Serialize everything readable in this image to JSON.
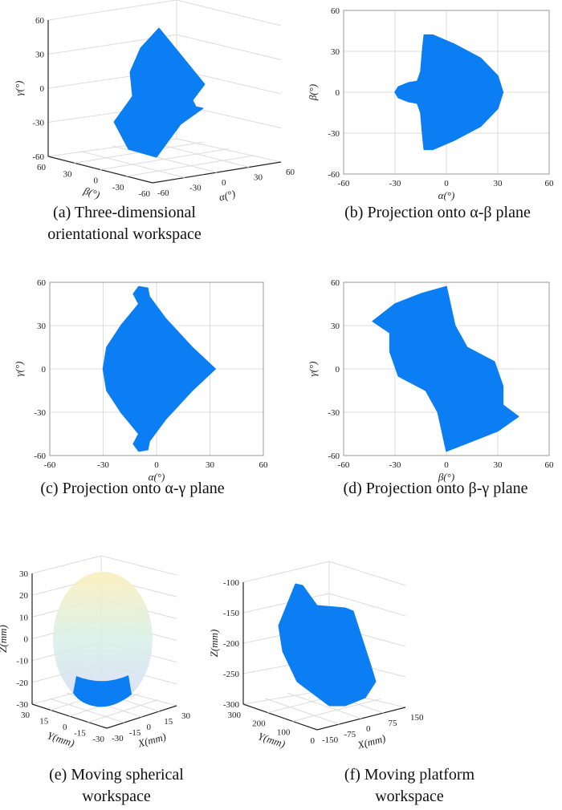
{
  "colors": {
    "points": "#0a7ef2",
    "grid": "#dcdcdc",
    "axis": "#222222"
  },
  "captions": {
    "a": [
      "(a) Three-dimensional",
      "orientational workspace"
    ],
    "b": "(b) Projection onto α-β plane",
    "c": "(c) Projection onto α-γ plane",
    "d": "(d) Projection onto β-γ plane",
    "e": [
      "(e) Moving spherical",
      "workspace"
    ],
    "f": [
      "(f) Moving platform",
      "workspace"
    ]
  },
  "chart_data": [
    {
      "id": "a",
      "type": "scatter3d",
      "title": "Three-dimensional orientational workspace",
      "xlabel": "α(°)",
      "ylabel": "β(°)",
      "zlabel": "γ(°)",
      "xticks": [
        "-60",
        "-30",
        "0",
        "30",
        "60"
      ],
      "yticks": [
        "60",
        "30",
        "0",
        "-30",
        "-60"
      ],
      "zticks": [
        "60",
        "30",
        "0",
        "-30",
        "-60"
      ],
      "xlim": [
        -60,
        60
      ],
      "ylim": [
        -60,
        60
      ],
      "zlim": [
        -60,
        60
      ]
    },
    {
      "id": "b",
      "type": "scatter",
      "title": "Projection onto α-β plane",
      "xlabel": "α(°)",
      "ylabel": "β(°)",
      "xticks": [
        "-60",
        "-30",
        "0",
        "30",
        "60"
      ],
      "yticks": [
        "60",
        "30",
        "0",
        "-30",
        "-60"
      ],
      "xlim": [
        -60,
        60
      ],
      "ylim": [
        -60,
        60
      ],
      "region": [
        [
          -30,
          0
        ],
        [
          -28,
          4
        ],
        [
          -22,
          7
        ],
        [
          -17,
          8
        ],
        [
          -15,
          15
        ],
        [
          -14,
          30
        ],
        [
          -13,
          42
        ],
        [
          -8,
          42
        ],
        [
          5,
          35
        ],
        [
          20,
          25
        ],
        [
          30,
          12
        ],
        [
          33,
          0
        ],
        [
          30,
          -12
        ],
        [
          20,
          -25
        ],
        [
          5,
          -35
        ],
        [
          -8,
          -42
        ],
        [
          -13,
          -42
        ],
        [
          -14,
          -30
        ],
        [
          -15,
          -15
        ],
        [
          -17,
          -8
        ],
        [
          -22,
          -7
        ],
        [
          -28,
          -4
        ]
      ]
    },
    {
      "id": "c",
      "type": "scatter",
      "title": "Projection onto α-γ plane",
      "xlabel": "α(°)",
      "ylabel": "γ(°)",
      "xticks": [
        "-60",
        "-30",
        "0",
        "30",
        "60"
      ],
      "yticks": [
        "60",
        "30",
        "0",
        "-30",
        "-60"
      ],
      "xlim": [
        -60,
        60
      ],
      "ylim": [
        -60,
        60
      ],
      "region": [
        [
          -10,
          57
        ],
        [
          -5,
          56
        ],
        [
          -4,
          50
        ],
        [
          5,
          35
        ],
        [
          20,
          15
        ],
        [
          33,
          0
        ],
        [
          20,
          -15
        ],
        [
          5,
          -35
        ],
        [
          -4,
          -50
        ],
        [
          -5,
          -56
        ],
        [
          -10,
          -57
        ],
        [
          -13,
          -52
        ],
        [
          -10,
          -45
        ],
        [
          -20,
          -30
        ],
        [
          -28,
          -15
        ],
        [
          -30,
          0
        ],
        [
          -28,
          15
        ],
        [
          -20,
          30
        ],
        [
          -10,
          45
        ],
        [
          -13,
          52
        ]
      ]
    },
    {
      "id": "d",
      "type": "scatter",
      "title": "Projection onto β-γ plane",
      "xlabel": "β(°)",
      "ylabel": "γ(°)",
      "xticks": [
        "-60",
        "-30",
        "0",
        "30",
        "60"
      ],
      "yticks": [
        "60",
        "30",
        "0",
        "-30",
        "-60"
      ],
      "xlim": [
        -60,
        60
      ],
      "ylim": [
        -60,
        60
      ],
      "region": [
        [
          -43,
          33
        ],
        [
          -30,
          45
        ],
        [
          -15,
          52
        ],
        [
          0,
          57
        ],
        [
          5,
          30
        ],
        [
          12,
          15
        ],
        [
          28,
          5
        ],
        [
          33,
          -12
        ],
        [
          33,
          -25
        ],
        [
          42,
          -33
        ],
        [
          30,
          -43
        ],
        [
          15,
          -50
        ],
        [
          0,
          -57
        ],
        [
          -5,
          -30
        ],
        [
          -12,
          -15
        ],
        [
          -28,
          -5
        ],
        [
          -33,
          12
        ],
        [
          -33,
          25
        ]
      ]
    },
    {
      "id": "e",
      "type": "scatter3d",
      "title": "Moving spherical workspace",
      "xlabel": "X(mm)",
      "ylabel": "Y(mm)",
      "zlabel": "Z(mm)",
      "xticks": [
        "-30",
        "-15",
        "0",
        "15",
        "30"
      ],
      "yticks": [
        "30",
        "15",
        "0",
        "-15",
        "-30"
      ],
      "zticks": [
        "30",
        "20",
        "10",
        "0",
        "-10",
        "-20",
        "-30"
      ],
      "xlim": [
        -30,
        30
      ],
      "ylim": [
        -30,
        30
      ],
      "zlim": [
        -30,
        30
      ]
    },
    {
      "id": "f",
      "type": "scatter3d",
      "title": "Moving platform workspace",
      "xlabel": "X(mm)",
      "ylabel": "Y(mm)",
      "zlabel": "Z(mm)",
      "xticks": [
        "-150",
        "-75",
        "0",
        "75",
        "150"
      ],
      "yticks": [
        "300",
        "200",
        "100",
        "0"
      ],
      "zticks": [
        "-100",
        "-150",
        "-200",
        "-250",
        "-300"
      ],
      "xlim": [
        -150,
        150
      ],
      "ylim": [
        0,
        300
      ],
      "zlim": [
        -300,
        -100
      ]
    }
  ]
}
